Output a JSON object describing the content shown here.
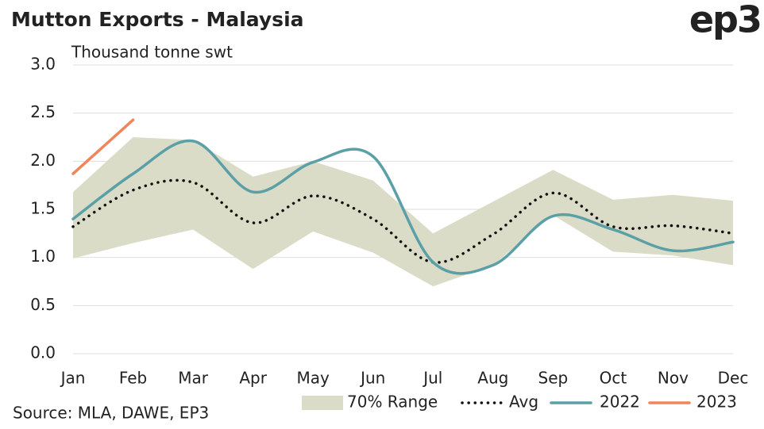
{
  "chart_data": {
    "type": "line",
    "title": "Mutton Exports - Malaysia",
    "logo": "ep3",
    "y_label": "Thousand tonne swt",
    "source": "Source: MLA, DAWE, EP3",
    "categories": [
      "Jan",
      "Feb",
      "Mar",
      "Apr",
      "May",
      "Jun",
      "Jul",
      "Aug",
      "Sep",
      "Oct",
      "Nov",
      "Dec"
    ],
    "ylim": [
      0,
      3
    ],
    "yticks": [
      {
        "value": 0,
        "label": "0.0"
      },
      {
        "value": 0.5,
        "label": "0.5"
      },
      {
        "value": 1,
        "label": "1.0"
      },
      {
        "value": 1.5,
        "label": "1.5"
      },
      {
        "value": 2,
        "label": "2.0"
      },
      {
        "value": 2.5,
        "label": "2.5"
      },
      {
        "value": 3,
        "label": "3.0"
      }
    ],
    "grid": true,
    "legend": "bottom",
    "range": {
      "name": "70% Range",
      "color": "#dbdcc7",
      "lower": [
        0.99,
        1.15,
        1.29,
        0.88,
        1.27,
        1.05,
        0.7,
        0.92,
        1.44,
        1.06,
        1.02,
        0.92
      ],
      "upper": [
        1.68,
        2.25,
        2.22,
        1.84,
        2.0,
        1.8,
        1.25,
        1.58,
        1.91,
        1.6,
        1.65,
        1.59
      ]
    },
    "series": [
      {
        "name": "Avg",
        "color": "#111111",
        "dotted": true,
        "values": [
          1.32,
          1.7,
          1.78,
          1.36,
          1.64,
          1.4,
          0.95,
          1.24,
          1.67,
          1.32,
          1.33,
          1.25
        ]
      },
      {
        "name": "2022",
        "color": "#5b9fa7",
        "values": [
          1.4,
          1.87,
          2.21,
          1.68,
          1.99,
          2.05,
          0.95,
          0.92,
          1.43,
          1.29,
          1.07,
          1.16
        ]
      },
      {
        "name": "2023",
        "color": "#f0845a",
        "values": [
          1.87,
          2.43,
          null,
          null,
          null,
          null,
          null,
          null,
          null,
          null,
          null,
          null
        ]
      }
    ]
  }
}
